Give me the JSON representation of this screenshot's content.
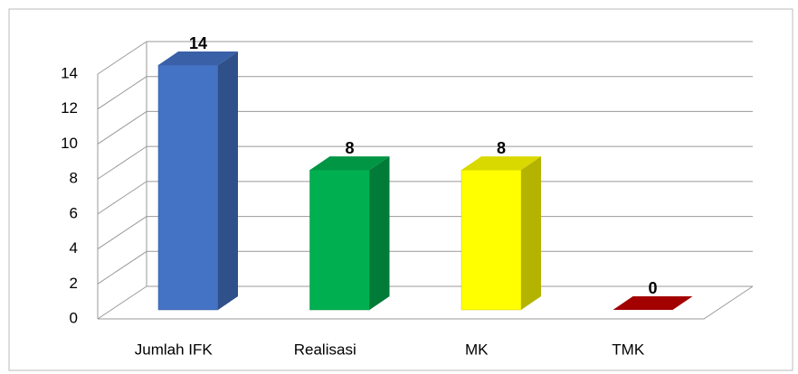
{
  "chart_data": {
    "type": "bar3d",
    "categories": [
      "Jumlah IFK",
      "Realisasi",
      "MK",
      "TMK"
    ],
    "values": [
      14,
      8,
      8,
      0
    ],
    "colors": [
      "#4472c4",
      "#00b050",
      "#ffff00",
      "#c00000"
    ],
    "ylim": [
      0,
      14
    ],
    "yticks": [
      0,
      2,
      4,
      6,
      8,
      10,
      12,
      14
    ],
    "grid": true
  }
}
